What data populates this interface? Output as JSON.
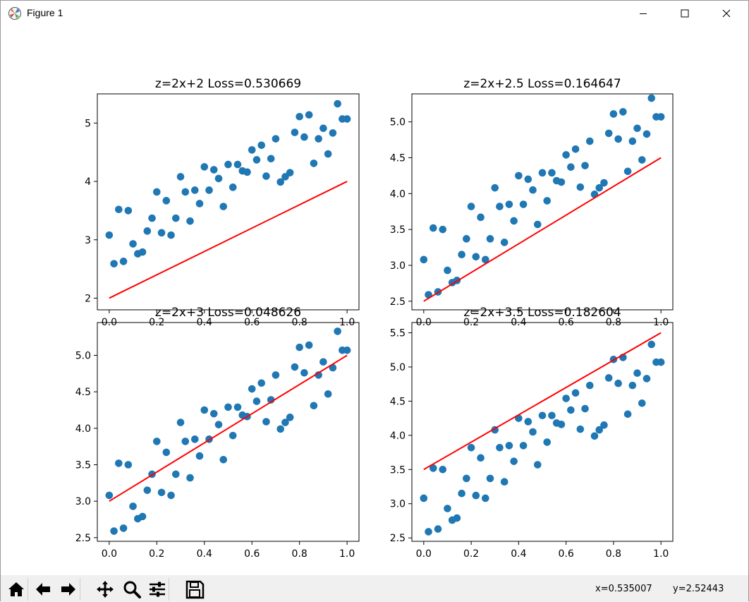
{
  "window": {
    "title": "Figure 1",
    "icons": [
      "figure-app-icon",
      "minimize-icon",
      "maximize-icon",
      "close-icon"
    ]
  },
  "toolbar": {
    "buttons": [
      "home-icon",
      "back-arrow-icon",
      "forward-arrow-icon",
      "pan-icon",
      "zoom-icon",
      "configure-subplots-icon",
      "save-icon"
    ]
  },
  "status": {
    "x_readout": "x=0.535007",
    "y_readout": "y=2.52443"
  },
  "colors": {
    "scatter": "#1f77b4",
    "line": "#ff0000",
    "background": "#ffffff",
    "toolbar": "#f0f0f0"
  },
  "chart_data": [
    {
      "type": "scatter",
      "title": "z=2x+2 Loss=0.530669",
      "xlim": [
        -0.05,
        1.05
      ],
      "ylim": [
        1.8,
        5.5
      ],
      "xticks": [
        "0.0",
        "0.2",
        "0.4",
        "0.6",
        "0.8",
        "1.0"
      ],
      "yticks": [
        "2",
        "3",
        "4",
        "5"
      ],
      "line": {
        "intercept": 2.0,
        "slope": 2.0,
        "x": [
          0,
          1
        ],
        "y": [
          2.0,
          4.0
        ],
        "color": "#ff0000"
      }
    },
    {
      "type": "scatter",
      "title": "z=2x+2.5 Loss=0.164647",
      "xlim": [
        -0.05,
        1.05
      ],
      "ylim": [
        2.38,
        5.39
      ],
      "xticks": [
        "0.0",
        "0.2",
        "0.4",
        "0.6",
        "0.8",
        "1.0"
      ],
      "yticks": [
        "2.5",
        "3.0",
        "3.5",
        "4.0",
        "4.5",
        "5.0"
      ],
      "line": {
        "intercept": 2.5,
        "slope": 2.0,
        "x": [
          0,
          1
        ],
        "y": [
          2.5,
          4.5
        ],
        "color": "#ff0000"
      }
    },
    {
      "type": "scatter",
      "title": "z=2x+3 Loss=0.048626",
      "xlim": [
        -0.05,
        1.05
      ],
      "ylim": [
        2.45,
        5.45
      ],
      "xticks": [
        "0.0",
        "0.2",
        "0.4",
        "0.6",
        "0.8",
        "1.0"
      ],
      "yticks": [
        "2.5",
        "3.0",
        "3.5",
        "4.0",
        "4.5",
        "5.0"
      ],
      "line": {
        "intercept": 3.0,
        "slope": 2.0,
        "x": [
          0,
          1
        ],
        "y": [
          3.0,
          5.0
        ],
        "color": "#ff0000"
      }
    },
    {
      "type": "scatter",
      "title": "z=2x+3.5 Loss=0.182604",
      "xlim": [
        -0.05,
        1.05
      ],
      "ylim": [
        2.45,
        5.65
      ],
      "xticks": [
        "0.0",
        "0.2",
        "0.4",
        "0.6",
        "0.8",
        "1.0"
      ],
      "yticks": [
        "2.5",
        "3.0",
        "3.5",
        "4.0",
        "4.5",
        "5.0",
        "5.5"
      ],
      "line": {
        "intercept": 3.5,
        "slope": 2.0,
        "x": [
          0,
          1
        ],
        "y": [
          3.5,
          5.5
        ],
        "color": "#ff0000"
      }
    }
  ],
  "scatter_points": {
    "x": [
      0.0,
      0.02,
      0.04,
      0.06,
      0.08,
      0.1,
      0.12,
      0.14,
      0.16,
      0.18,
      0.2,
      0.22,
      0.24,
      0.26,
      0.28,
      0.3,
      0.32,
      0.34,
      0.36,
      0.38,
      0.4,
      0.42,
      0.44,
      0.46,
      0.48,
      0.5,
      0.52,
      0.54,
      0.56,
      0.58,
      0.6,
      0.62,
      0.64,
      0.66,
      0.68,
      0.7,
      0.72,
      0.74,
      0.76,
      0.78,
      0.8,
      0.82,
      0.84,
      0.86,
      0.88,
      0.9,
      0.92,
      0.94,
      0.96,
      0.98,
      1.0
    ],
    "y": [
      3.08,
      2.59,
      3.52,
      2.63,
      3.5,
      2.93,
      2.76,
      2.79,
      3.15,
      3.37,
      3.82,
      3.12,
      3.67,
      3.08,
      3.37,
      4.08,
      3.82,
      3.32,
      3.85,
      3.62,
      4.25,
      3.85,
      4.2,
      4.05,
      3.57,
      4.29,
      3.9,
      4.29,
      4.18,
      4.16,
      4.54,
      4.37,
      4.62,
      4.09,
      4.39,
      4.73,
      3.99,
      4.08,
      4.15,
      4.84,
      5.11,
      4.76,
      5.14,
      4.31,
      4.73,
      4.91,
      4.47,
      4.83,
      5.33,
      5.07,
      5.07
    ]
  }
}
